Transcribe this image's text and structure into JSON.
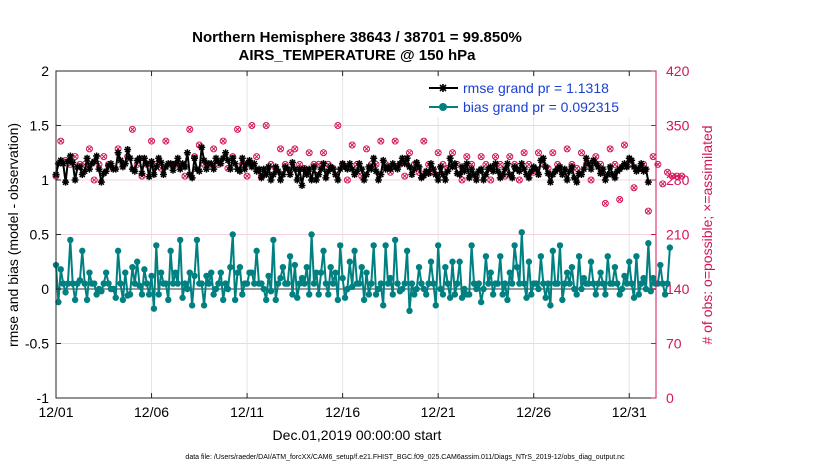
{
  "chart_data": {
    "type": "line",
    "title": "Northern Hemisphere 38643 / 38701 = 99.850%",
    "subtitle": "AIRS_TEMPERATURE @ 150 hPa",
    "xlabel": "Dec.01,2019 00:00:00 start",
    "ylabel": "rmse and bias (model - observation)",
    "ylabel_right": "# of obs: o=possible; ×=assimilated",
    "footnote": "data file: /Users/raeder/DAI/ATM_forcXX/CAM6_setup/f.e21.FHIST_BGC.f09_025.CAM6assim.011/Diags_NTrS_2019-12/obs_diag_output.nc",
    "xlim": [
      0,
      31.4
    ],
    "ylim": [
      -1,
      2
    ],
    "ylim_right": [
      0,
      420
    ],
    "grid": true,
    "x_tick_labels": [
      "12/01",
      "12/06",
      "12/11",
      "12/16",
      "12/21",
      "12/26",
      "12/31"
    ],
    "x_tick_values": [
      0,
      5,
      10,
      15,
      20,
      25,
      30
    ],
    "y_tick_labels": [
      "-1",
      "-0.5",
      "0",
      "0.5",
      "1",
      "1.5",
      "2"
    ],
    "y_tick_values": [
      -1,
      -0.5,
      0,
      0.5,
      1,
      1.5,
      2
    ],
    "y_right_tick_labels": [
      "0",
      "70",
      "140",
      "210",
      "280",
      "350",
      "420"
    ],
    "y_right_tick_values": [
      0,
      70,
      140,
      210,
      280,
      350,
      420
    ],
    "legend_position": "top-right",
    "colors": {
      "rmse": "#000000",
      "bias": "#008080",
      "obs": "#d4145a",
      "zero_line": "#999999",
      "legend_text": "#1a3fd6"
    },
    "series": [
      {
        "name": "rmse grand pr = 1.1318",
        "axis": "left",
        "marker": "asterisk",
        "values": [
          1.05,
          1.15,
          1.18,
          1.15,
          0.98,
          1.17,
          1.22,
          1.16,
          1.0,
          1.12,
          1.12,
          1.05,
          1.08,
          1.2,
          1.1,
          1.15,
          1.17,
          1.22,
          1.1,
          0.98,
          1.06,
          1.08,
          1.13,
          1.15,
          1.1,
          1.1,
          1.25,
          1.18,
          1.12,
          1.15,
          1.28,
          1.2,
          1.1,
          1.08,
          1.18,
          1.2,
          1.06,
          1.2,
          1.15,
          1.03,
          1.17,
          1.05,
          1.12,
          1.2,
          1.16,
          1.05,
          1.12,
          1.15,
          1.15,
          1.09,
          1.15,
          1.2,
          1.1,
          1.15,
          1.12,
          1.25,
          1.05,
          1.02,
          1.2,
          1.1,
          1.08,
          1.3,
          1.18,
          1.1,
          1.15,
          1.15,
          1.1,
          1.2,
          1.17,
          1.15,
          1.2,
          1.25,
          1.18,
          1.1,
          1.2,
          1.15,
          1.1,
          1.08,
          1.2,
          1.1,
          1.15,
          1.18,
          1.12,
          1.15,
          1.08,
          1.1,
          1.02,
          1.1,
          1.05,
          1.12,
          1.0,
          1.05,
          1.12,
          1.08,
          1.0,
          1.05,
          1.12,
          1.1,
          1.05,
          1.16,
          1.1,
          1.0,
          1.1,
          0.95,
          1.1,
          1.05,
          1.1,
          1.0,
          1.12,
          1.0,
          1.05,
          1.1,
          1.15,
          1.02,
          1.08,
          1.12,
          1.1,
          1.05,
          1.0,
          1.1,
          1.15,
          1.12,
          1.1,
          1.15,
          1.1,
          1.05,
          1.08,
          1.15,
          1.1,
          1.0,
          1.05,
          1.12,
          1.1,
          1.2,
          1.08,
          1.0,
          1.05,
          1.18,
          1.1,
          1.12,
          1.1,
          1.15,
          1.12,
          1.1,
          1.15,
          1.2,
          1.15,
          1.2,
          1.12,
          1.05,
          1.1,
          1.16,
          1.12,
          1.02,
          1.04,
          1.08,
          1.06,
          1.15,
          1.1,
          1.05,
          1.0,
          1.12,
          1.05,
          1.0,
          1.08,
          1.2,
          1.12,
          1.15,
          1.06,
          1.05,
          1.12,
          1.08,
          1.15,
          1.02,
          1.1,
          1.05,
          1.0,
          1.08,
          1.1,
          1.0,
          1.05,
          1.1,
          1.12,
          1.08,
          1.15,
          1.08,
          1.02,
          1.05,
          1.1,
          1.15,
          1.05,
          1.02,
          1.12,
          1.1,
          1.08,
          1.15,
          1.1,
          1.05,
          1.02,
          1.08,
          1.12,
          1.1,
          1.05,
          1.18,
          1.2,
          1.12,
          1.06,
          0.98,
          1.05,
          1.08,
          1.1,
          1.12,
          1.05,
          1.1,
          1.0,
          1.08,
          1.12,
          1.02,
          0.98,
          1.06,
          1.05,
          1.1,
          1.2,
          1.15,
          1.1,
          1.18,
          1.15,
          1.12,
          1.06,
          1.1,
          1.0,
          1.05,
          1.12,
          1.05,
          1.02,
          1.08,
          1.1,
          1.12,
          1.15,
          1.12,
          1.2,
          1.18,
          1.12,
          1.08,
          1.1,
          1.15,
          1.08,
          1.1,
          0.98
        ]
      },
      {
        "name": "bias grand pr = 0.092315",
        "axis": "left",
        "marker": "circle",
        "values": [
          0.22,
          -0.12,
          0.18,
          0.05,
          -0.03,
          0.05,
          0.45,
          0.05,
          -0.1,
          0.05,
          0.08,
          0.35,
          0.05,
          -0.1,
          0.15,
          0.05,
          0.05,
          -0.05,
          0.0,
          -0.02,
          0.05,
          0.15,
          0.05,
          0.0,
          0.0,
          -0.08,
          0.35,
          0.05,
          -0.1,
          0.15,
          -0.06,
          -0.05,
          0.2,
          0.05,
          0.25,
          0.03,
          -0.05,
          0.18,
          0.05,
          -0.05,
          0.12,
          -0.18,
          0.4,
          -0.05,
          0.15,
          0.05,
          0.05,
          -0.1,
          0.35,
          0.05,
          0.15,
          0.05,
          0.45,
          -0.08,
          0.05,
          0.0,
          0.15,
          -0.15,
          0.12,
          0.45,
          0.05,
          0.05,
          -0.15,
          0.12,
          0.05,
          0.15,
          -0.05,
          0.0,
          0.05,
          0.15,
          -0.1,
          0.05,
          0.0,
          0.2,
          0.5,
          -0.1,
          0.15,
          0.2,
          -0.05,
          0.05,
          0.05,
          0.15,
          0.15,
          0.05,
          0.35,
          0.05,
          0.05,
          0.0,
          -0.1,
          0.12,
          -0.02,
          0.45,
          -0.1,
          0.05,
          0.1,
          0.2,
          0.05,
          0.05,
          0.3,
          -0.05,
          0.22,
          -0.08,
          0.05,
          0.1,
          0.05,
          0.2,
          -0.05,
          0.5,
          0.05,
          0.15,
          -0.05,
          0.15,
          0.35,
          0.05,
          -0.05,
          0.2,
          0.05,
          0.15,
          -0.1,
          0.4,
          0.1,
          -0.08,
          0.0,
          0.25,
          0.02,
          0.35,
          0.05,
          0.05,
          0.2,
          -0.1,
          0.15,
          -0.05,
          0.05,
          0.4,
          -0.05,
          0.0,
          0.05,
          -0.15,
          0.4,
          0.05,
          0.1,
          -0.05,
          0.45,
          0.05,
          -0.02,
          0.0,
          0.05,
          0.35,
          -0.2,
          0.05,
          -0.05,
          0.0,
          0.2,
          0.05,
          0.0,
          -0.05,
          0.05,
          0.25,
          0.05,
          -0.15,
          0.4,
          0.0,
          -0.05,
          0.2,
          0.05,
          -0.08,
          0.25,
          -0.05,
          0.05,
          0.25,
          -0.08,
          0.0,
          -0.05,
          -0.05,
          0.4,
          0.05,
          0.0,
          0.05,
          -0.12,
          0.0,
          0.3,
          0.05,
          0.15,
          -0.05,
          0.05,
          0.05,
          0.3,
          -0.05,
          0.05,
          -0.1,
          0.15,
          0.05,
          0.4,
          0.2,
          0.05,
          0.52,
          0.05,
          -0.08,
          0.25,
          -0.05,
          0.05,
          0.05,
          0.0,
          0.3,
          0.05,
          -0.08,
          0.05,
          -0.15,
          0.35,
          0.05,
          0.05,
          0.4,
          -0.1,
          0.05,
          0.15,
          0.05,
          0.2,
          0.0,
          -0.05,
          0.3,
          0.0,
          0.1,
          0.05,
          0.05,
          0.25,
          0.05,
          -0.05,
          0.05,
          0.15,
          0.05,
          -0.05,
          0.3,
          0.05,
          0.05,
          0.2,
          0.05,
          -0.05,
          0.0,
          0.12,
          0.05,
          0.25,
          0.05,
          -0.08,
          0.3,
          -0.05,
          0.05,
          0.1,
          0.0,
          0.42,
          -0.02,
          0.1,
          0.05,
          0.05,
          0.22,
          0.05,
          -0.05,
          0.05,
          0.38
        ]
      },
      {
        "name": "# of obs possible",
        "axis": "right",
        "marker": "o",
        "values": [
          285,
          305,
          330,
          325,
          305,
          355,
          300,
          320,
          310,
          295,
          300,
          315,
          300,
          275,
          320,
          310,
          280,
          345,
          300,
          320,
          310,
          275,
          300,
          330,
          295,
          335,
          320,
          290,
          300,
          335,
          310,
          300,
          345,
          295,
          300,
          320,
          285,
          330,
          300,
          310,
          330,
          295,
          300,
          320,
          295,
          285,
          330,
          310,
          300,
          325,
          300,
          315,
          300,
          335,
          285,
          300,
          345,
          295,
          310,
          300,
          325,
          290,
          300,
          335,
          300,
          300,
          320,
          345,
          300,
          310,
          330,
          300,
          295,
          360,
          310,
          300,
          345,
          315,
          300,
          330,
          285,
          300,
          350,
          300,
          310,
          340,
          285,
          300,
          350,
          330,
          300,
          310,
          295,
          300,
          320,
          295,
          300,
          345,
          315,
          300,
          320,
          285,
          300,
          340,
          295,
          300,
          315,
          285,
          300,
          330,
          300,
          300,
          315,
          285,
          300,
          315,
          295,
          300,
          350,
          290,
          300,
          315,
          280,
          300,
          325,
          300,
          300,
          315,
          285,
          300,
          320,
          285,
          300,
          315,
          300,
          300,
          330,
          285,
          300,
          315,
          290,
          300,
          330,
          300,
          300,
          320,
          285,
          300,
          315,
          290,
          300,
          320,
          290,
          300,
          330,
          280,
          300,
          320,
          290,
          300,
          315,
          280,
          300,
          325,
          295,
          300,
          315,
          290,
          300,
          320,
          280,
          300,
          310,
          290,
          300,
          325,
          285,
          300,
          310,
          295,
          300,
          320,
          280,
          300,
          310,
          275,
          300,
          320,
          285,
          300,
          310,
          295,
          300,
          335,
          280,
          300,
          315,
          285,
          300,
          320,
          290,
          300,
          315,
          280,
          300,
          320,
          295,
          300,
          315,
          285,
          300,
          310,
          290,
          300,
          320,
          280,
          300,
          310,
          295,
          300,
          315,
          285,
          300,
          320,
          280,
          300,
          310,
          290,
          300,
          310,
          250,
          300,
          320,
          280,
          300,
          310,
          255,
          300,
          325,
          290,
          300,
          310,
          270,
          300,
          295,
          285,
          300,
          300,
          240,
          300,
          310,
          260,
          300,
          295,
          275,
          300,
          290,
          280,
          285,
          310,
          285,
          300,
          285,
          275
        ]
      },
      {
        "name": "# of obs assimilated",
        "axis": "right",
        "marker": "x",
        "values": [
          285,
          305,
          330,
          325,
          305,
          355,
          300,
          320,
          310,
          295,
          300,
          315,
          300,
          275,
          320,
          310,
          280,
          345,
          300,
          320,
          310,
          275,
          300,
          330,
          295,
          335,
          320,
          290,
          300,
          335,
          310,
          300,
          345,
          295,
          300,
          320,
          285,
          330,
          300,
          310,
          330,
          295,
          300,
          320,
          295,
          285,
          330,
          310,
          300,
          325,
          300,
          315,
          300,
          335,
          285,
          300,
          345,
          295,
          310,
          300,
          325,
          290,
          300,
          335,
          300,
          300,
          320,
          345,
          300,
          310,
          330,
          300,
          295,
          360,
          310,
          300,
          345,
          315,
          300,
          330,
          285,
          300,
          350,
          300,
          310,
          340,
          285,
          300,
          350,
          330,
          300,
          310,
          295,
          300,
          320,
          295,
          300,
          345,
          315,
          300,
          320,
          285,
          300,
          340,
          295,
          300,
          315,
          285,
          300,
          330,
          300,
          300,
          315,
          285,
          300,
          315,
          295,
          300,
          350,
          290,
          300,
          315,
          280,
          300,
          325,
          300,
          300,
          315,
          285,
          300,
          320,
          285,
          300,
          315,
          300,
          300,
          330,
          285,
          300,
          315,
          290,
          300,
          330,
          300,
          300,
          320,
          285,
          300,
          315,
          290,
          300,
          320,
          290,
          300,
          330,
          280,
          300,
          320,
          290,
          300,
          315,
          280,
          300,
          325,
          295,
          300,
          315,
          290,
          300,
          320,
          280,
          300,
          310,
          290,
          300,
          325,
          285,
          300,
          310,
          295,
          300,
          320,
          280,
          300,
          310,
          275,
          300,
          320,
          285,
          300,
          310,
          295,
          300,
          335,
          280,
          300,
          315,
          285,
          300,
          320,
          290,
          300,
          315,
          280,
          300,
          320,
          295,
          300,
          315,
          285,
          300,
          310,
          290,
          300,
          320,
          280,
          300,
          310,
          295,
          300,
          315,
          285,
          300,
          320,
          280,
          300,
          310,
          290,
          300,
          310,
          250,
          300,
          320,
          280,
          300,
          310,
          255,
          300,
          325,
          290,
          300,
          310,
          270,
          300,
          295,
          285,
          300,
          300,
          240,
          300,
          310,
          260,
          300,
          295,
          275,
          300,
          290,
          280,
          285,
          310,
          285,
          300,
          285,
          275
        ]
      }
    ],
    "x_step_days": 0.125
  }
}
